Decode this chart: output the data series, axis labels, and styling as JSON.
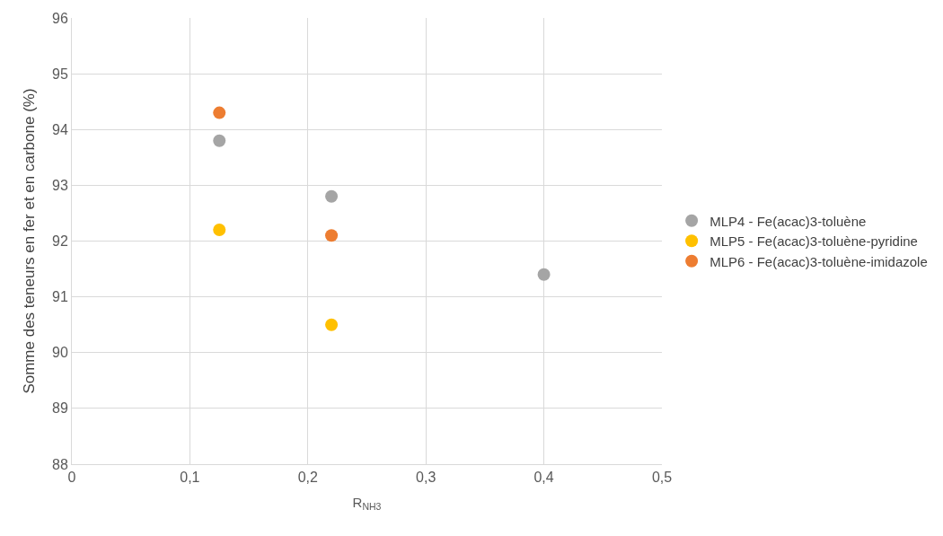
{
  "chart_data": {
    "type": "scatter",
    "xlabel": "R$_{NH3}$",
    "ylabel": "Somme des teneurs en fer et en carbone (%)",
    "xlim": [
      0,
      0.5
    ],
    "xticks": [
      {
        "value": 0,
        "label": "0"
      },
      {
        "value": 0.1,
        "label": "0,1"
      },
      {
        "value": 0.2,
        "label": "0,2"
      },
      {
        "value": 0.3,
        "label": "0,3"
      },
      {
        "value": 0.4,
        "label": "0,4"
      },
      {
        "value": 0.5,
        "label": "0,5"
      }
    ],
    "ylim": [
      88,
      96
    ],
    "yticks": [
      88,
      89,
      90,
      91,
      92,
      93,
      94,
      95,
      96
    ],
    "grid": true,
    "legend": "right",
    "marker": "circle",
    "series": [
      {
        "name": "MLP4 - Fe(acac)3-toluène",
        "color": "#a5a5a5",
        "x": [
          0.125,
          0.22,
          0.4
        ],
        "values": [
          93.8,
          92.8,
          91.4
        ]
      },
      {
        "name": "MLP5 - Fe(acac)3-toluène-pyridine",
        "color": "#ffc000",
        "x": [
          0.125,
          0.22
        ],
        "values": [
          92.2,
          90.5
        ]
      },
      {
        "name": "MLP6 - Fe(acac)3-toluène-imidazole",
        "color": "#ed7d31",
        "x": [
          0.125,
          0.22
        ],
        "values": [
          94.3,
          92.1
        ]
      }
    ]
  }
}
